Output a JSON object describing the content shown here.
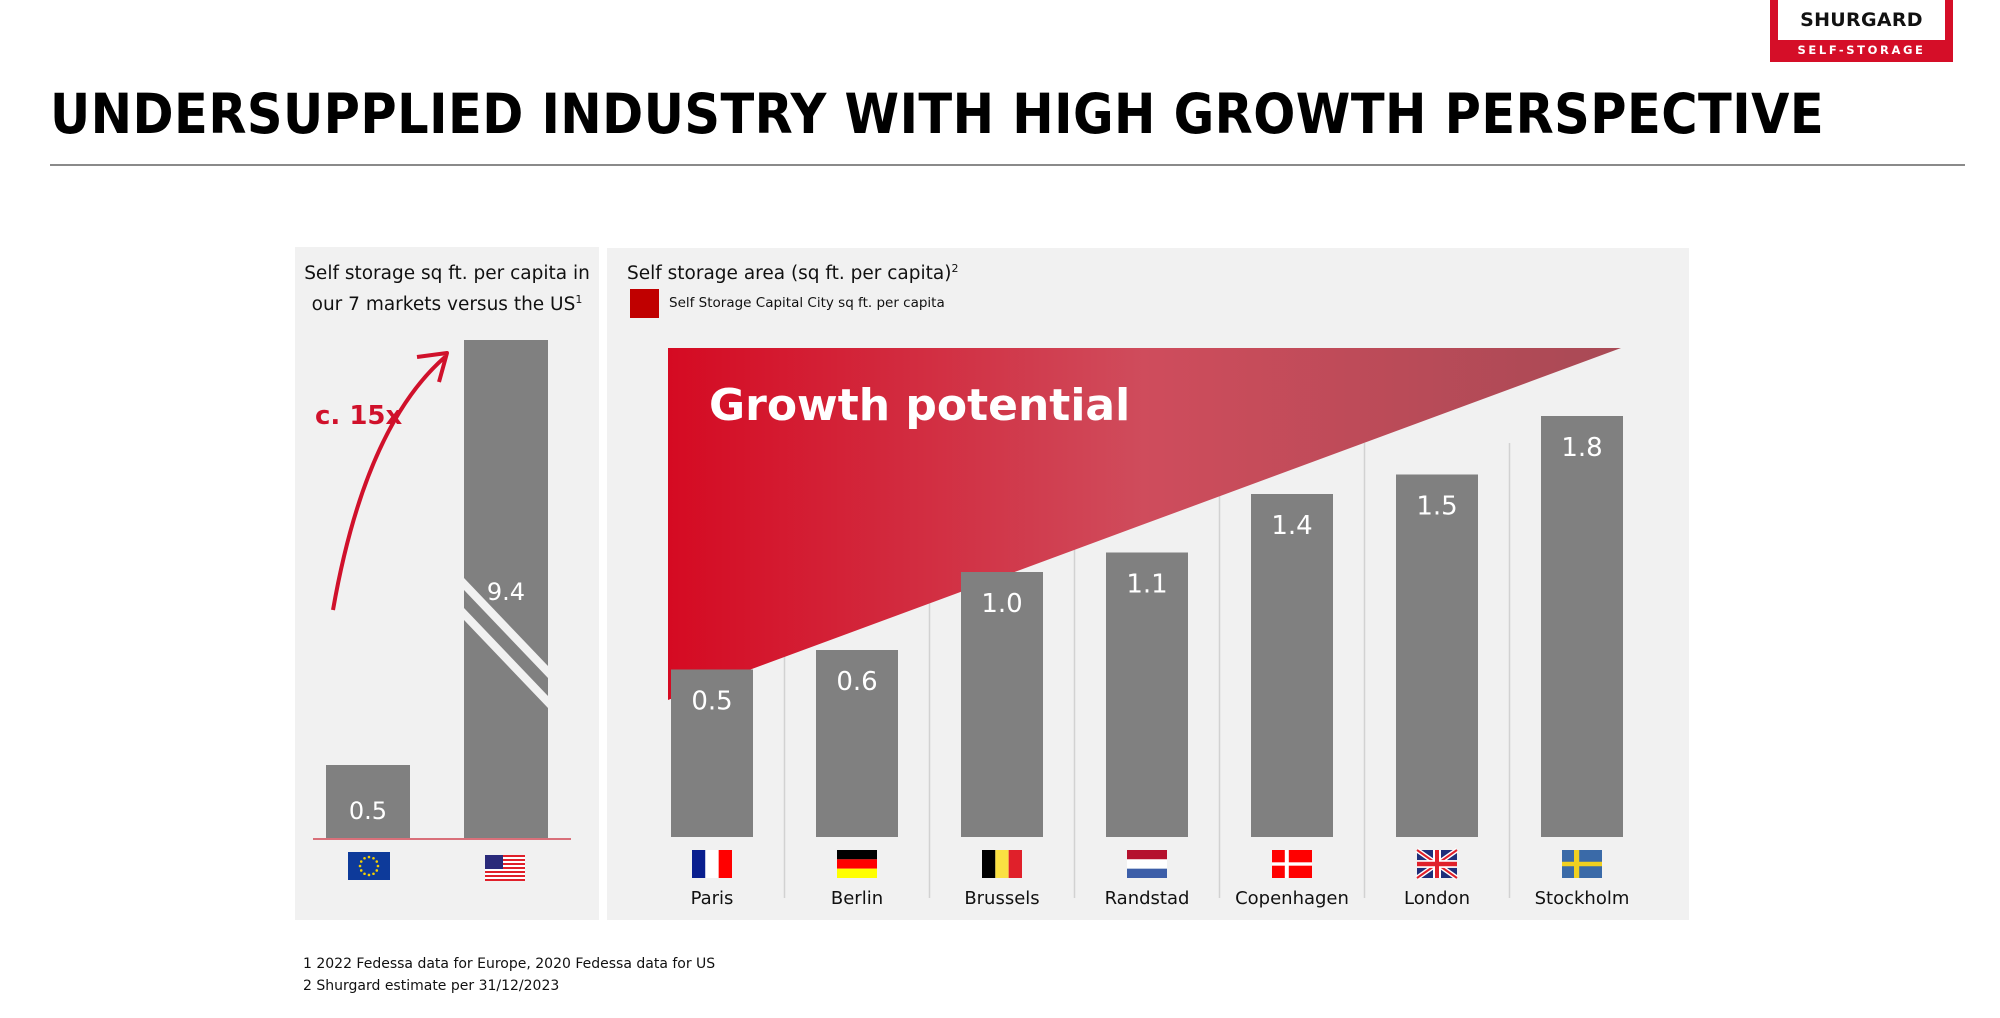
{
  "brand": {
    "name": "SHURGARD",
    "tagline": "SELF-STORAGE",
    "color": "#d50e28"
  },
  "page": {
    "title": "UNDERSUPPLIED INDUSTRY WITH HIGH GROWTH PERSPECTIVE"
  },
  "footnotes": [
    "1  2022 Fedessa data for Europe, 2020 Fedessa data for US",
    "2  Shurgard estimate per 31/12/2023"
  ],
  "chart_data": [
    {
      "type": "bar",
      "title": "Self storage sq ft. per capita in our 7 markets versus the US",
      "title_superscript": "1",
      "categories": [
        "EU (7 markets)",
        "US"
      ],
      "category_icons": [
        "eu-flag-icon",
        "us-flag-icon"
      ],
      "values": [
        0.5,
        9.4
      ],
      "data_labels": [
        "0.5",
        "9.4"
      ],
      "axis_break": "US bar truncated",
      "annotation": "c. 15x",
      "colors": {
        "bar": "#808080",
        "annotation": "#d0112b",
        "baseline": "#d9707a"
      },
      "xlabel": "",
      "ylabel": "",
      "grid": false
    },
    {
      "type": "bar",
      "title": "Self storage area (sq ft. per capita)",
      "title_superscript": "2",
      "legend": [
        {
          "label": "Self Storage Capital City sq ft. per capita",
          "color": "#c00000"
        }
      ],
      "legend_position": "top-left",
      "categories": [
        "Paris",
        "Berlin",
        "Brussels",
        "Randstad",
        "Copenhagen",
        "London",
        "Stockholm"
      ],
      "category_icons": [
        "france-flag-icon",
        "germany-flag-icon",
        "belgium-flag-icon",
        "netherlands-flag-icon",
        "denmark-flag-icon",
        "uk-flag-icon",
        "sweden-flag-icon"
      ],
      "values": [
        0.5,
        0.6,
        1.0,
        1.1,
        1.4,
        1.5,
        1.8
      ],
      "data_labels": [
        "0.5",
        "0.6",
        "1.0",
        "1.1",
        "1.4",
        "1.5",
        "1.8"
      ],
      "ylim": [
        0,
        2.0
      ],
      "annotation": "Growth potential",
      "colors": {
        "bar": "#808080",
        "wedge_start": "#d50a22",
        "wedge_mid": "#cf4c5c",
        "wedge_end": "#a84a55"
      },
      "xlabel": "",
      "ylabel": "",
      "grid": false
    }
  ]
}
